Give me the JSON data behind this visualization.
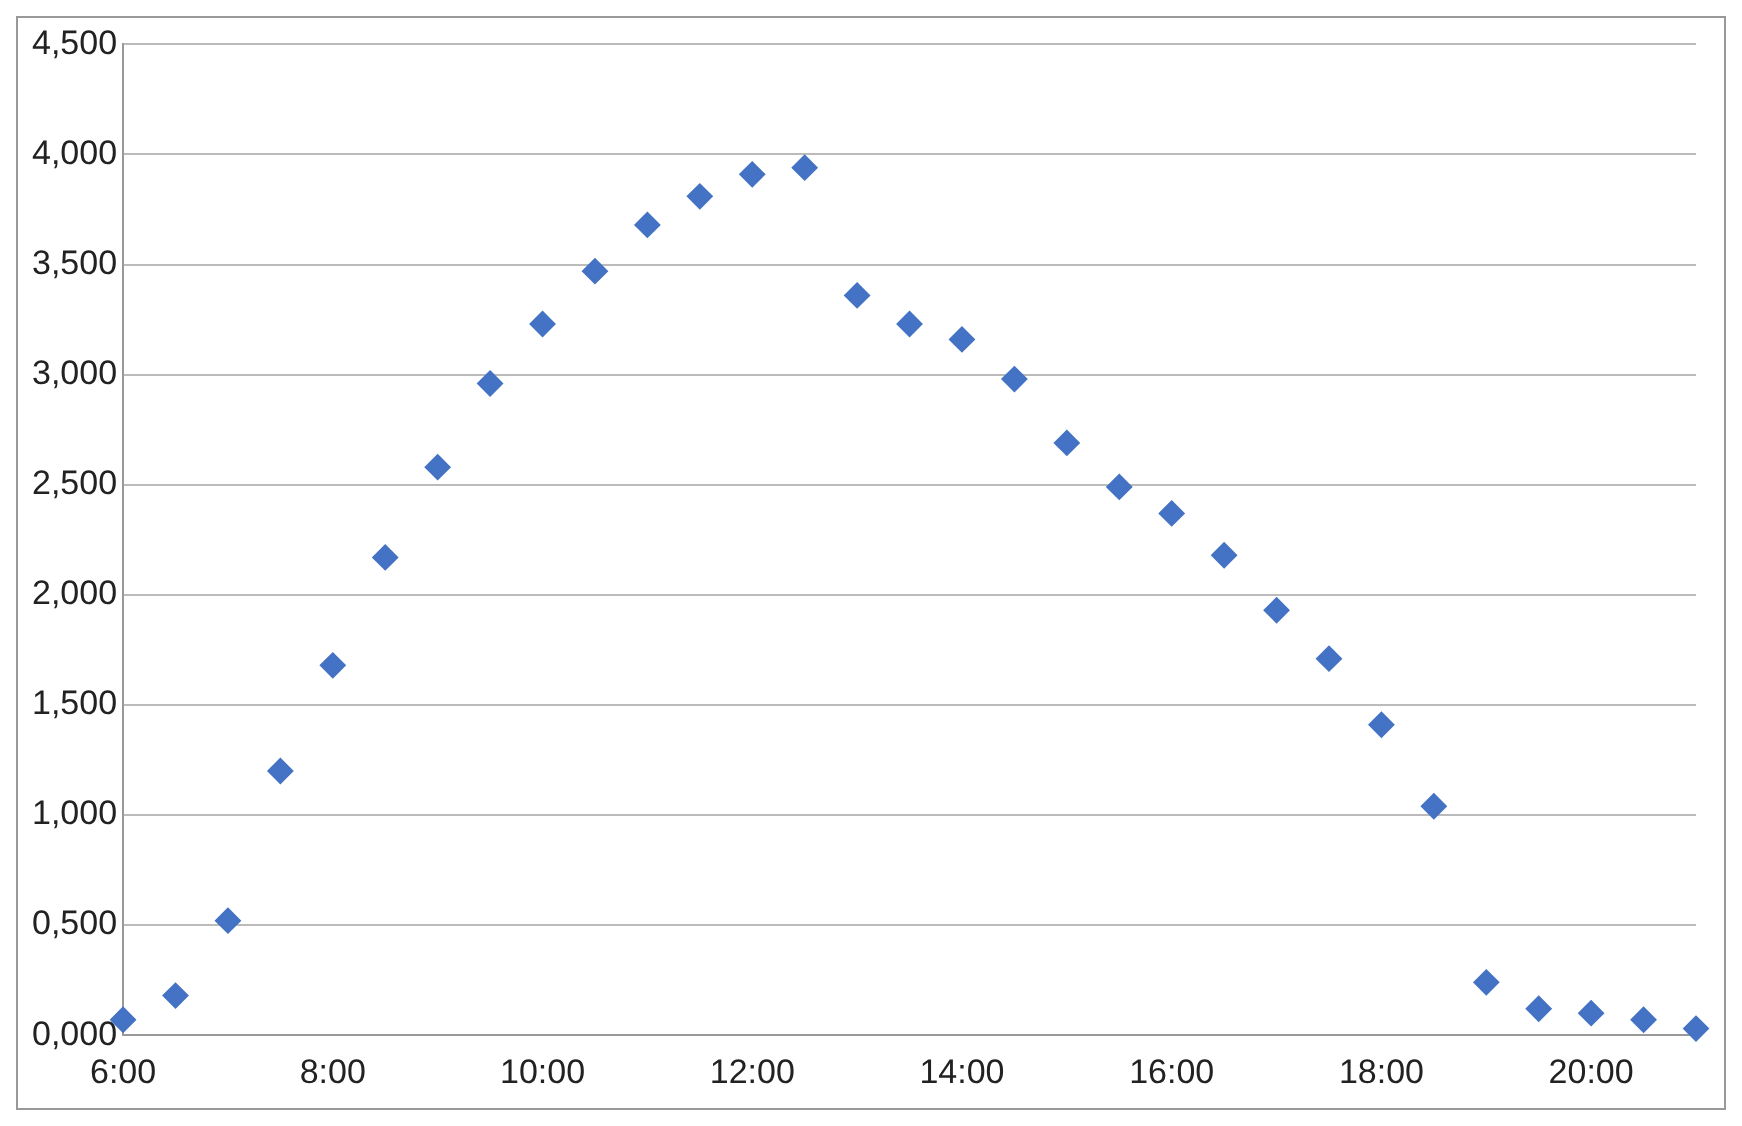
{
  "chart_data": {
    "type": "scatter",
    "x": [
      6,
      6.5,
      7,
      7.5,
      8,
      8.5,
      9,
      9.5,
      10,
      10.5,
      11,
      11.5,
      12,
      12.5,
      13,
      13.5,
      14,
      14.5,
      15,
      15.5,
      16,
      16.5,
      17,
      17.5,
      18,
      18.5,
      19,
      19.5,
      20,
      20.5,
      21
    ],
    "values": [
      0.07,
      0.18,
      0.52,
      1.2,
      1.68,
      2.17,
      2.58,
      2.96,
      3.23,
      3.47,
      3.68,
      3.81,
      3.91,
      3.94,
      3.36,
      3.23,
      3.16,
      2.98,
      2.69,
      2.49,
      2.37,
      2.18,
      1.93,
      1.71,
      1.41,
      1.04,
      0.24,
      0.12,
      0.1,
      0.07,
      0.03
    ],
    "color": "#4472c4",
    "marker": "diamond",
    "grid": "y",
    "legend": false,
    "xlim": [
      6,
      21
    ],
    "xticks": [
      {
        "value": 6,
        "label": "6:00"
      },
      {
        "value": 8,
        "label": "8:00"
      },
      {
        "value": 10,
        "label": "10:00"
      },
      {
        "value": 12,
        "label": "12:00"
      },
      {
        "value": 14,
        "label": "14:00"
      },
      {
        "value": 16,
        "label": "16:00"
      },
      {
        "value": 18,
        "label": "18:00"
      },
      {
        "value": 20,
        "label": "20:00"
      }
    ],
    "ylim": [
      0,
      4.5
    ],
    "yticks": [
      {
        "value": 0,
        "label": "0,000"
      },
      {
        "value": 0.5,
        "label": "0,500"
      },
      {
        "value": 1,
        "label": "1,000"
      },
      {
        "value": 1.5,
        "label": "1,500"
      },
      {
        "value": 2,
        "label": "2,000"
      },
      {
        "value": 2.5,
        "label": "2,500"
      },
      {
        "value": 3,
        "label": "3,000"
      },
      {
        "value": 3.5,
        "label": "3,500"
      },
      {
        "value": 4,
        "label": "4,000"
      },
      {
        "value": 4.5,
        "label": "4,500"
      }
    ]
  }
}
